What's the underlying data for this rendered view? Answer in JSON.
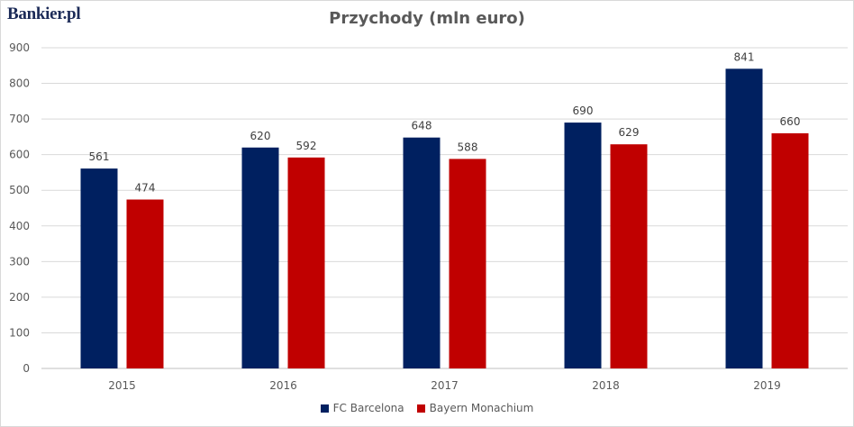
{
  "brand": {
    "logo_text": "Bankier.pl"
  },
  "chart_data": {
    "type": "bar",
    "title": "Przychody (mln euro)",
    "xlabel": "",
    "ylabel": "",
    "categories": [
      "2015",
      "2016",
      "2017",
      "2018",
      "2019"
    ],
    "series": [
      {
        "name": "FC Barcelona",
        "values": [
          561,
          620,
          648,
          690,
          841
        ],
        "color": "#002060"
      },
      {
        "name": "Bayern Monachium",
        "values": [
          474,
          592,
          588,
          629,
          660
        ],
        "color": "#c00000"
      }
    ],
    "ylim": [
      0,
      900
    ],
    "yticks": [
      0,
      100,
      200,
      300,
      400,
      500,
      600,
      700,
      800,
      900
    ],
    "grid": true,
    "legend_position": "bottom"
  }
}
